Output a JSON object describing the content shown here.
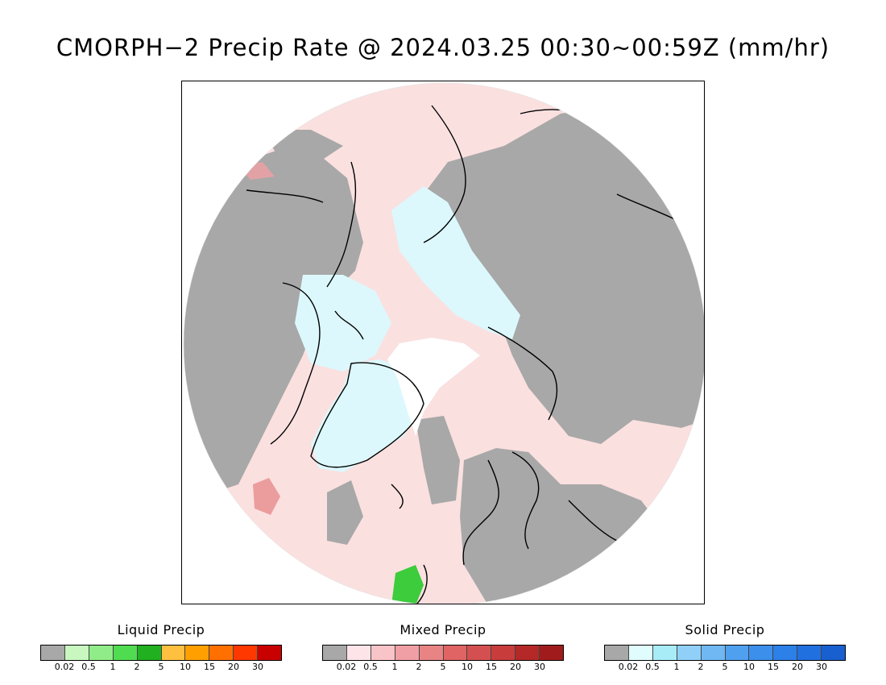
{
  "title": "CMORPH−2 Precip Rate @ 2024.03.25 00:30~00:59Z (mm/hr)",
  "map": {
    "projection": "polar-stereographic-north",
    "colors": {
      "ocean_no_precip": "#fbe0e0",
      "land_no_precip": "#a8a8a8",
      "snow_light": "#dcf8fc",
      "polar_gap": "#ffffff",
      "coastline": "#000000",
      "mixed_moderate": "#e89090",
      "liquid_precip": "#3ccc3c"
    }
  },
  "legends": [
    {
      "title": "Liquid Precip",
      "colors": [
        "#a8a8a8",
        "#c8f8c0",
        "#90ec88",
        "#50dc50",
        "#20b020",
        "#ffc040",
        "#ffa000",
        "#ff7000",
        "#ff3800",
        "#c80000"
      ],
      "ticks": [
        "0.02",
        "0.5",
        "1",
        "2",
        "5",
        "10",
        "15",
        "20",
        "30"
      ]
    },
    {
      "title": "Mixed Precip",
      "colors": [
        "#a8a8a8",
        "#fde4e8",
        "#f8c4c8",
        "#f0a0a4",
        "#e88484",
        "#e06464",
        "#d45050",
        "#c83c3c",
        "#b42828",
        "#a01c1c"
      ],
      "ticks": [
        "0.02",
        "0.5",
        "1",
        "2",
        "5",
        "10",
        "15",
        "20",
        "30"
      ]
    },
    {
      "title": "Solid Precip",
      "colors": [
        "#a8a8a8",
        "#e0fcfc",
        "#a8ecf8",
        "#90d0f8",
        "#70b8f4",
        "#50a0f0",
        "#3c90ec",
        "#2c80e8",
        "#2070e0",
        "#1860d0"
      ],
      "ticks": [
        "0.02",
        "0.5",
        "1",
        "2",
        "5",
        "10",
        "15",
        "20",
        "30"
      ]
    }
  ]
}
